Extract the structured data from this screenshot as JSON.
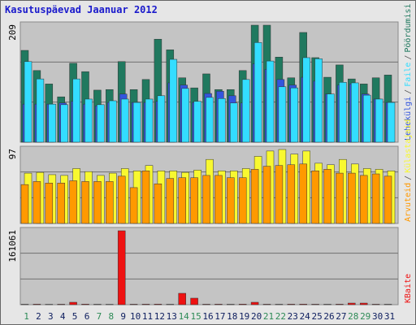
{
  "chart_data": [
    {
      "type": "bar",
      "title": "Kasutuspäevad Jaanuar 2012",
      "categories": [
        "1",
        "2",
        "3",
        "4",
        "5",
        "6",
        "7",
        "8",
        "9",
        "10",
        "11",
        "12",
        "13",
        "14",
        "15",
        "16",
        "17",
        "18",
        "19",
        "20",
        "21",
        "22",
        "23",
        "24",
        "25",
        "26",
        "27",
        "28",
        "29",
        "30",
        "31"
      ],
      "category_colors": [
        "#2e8b57",
        "#102060",
        "#102060",
        "#102060",
        "#102060",
        "#102060",
        "#2e8b57",
        "#2e8b57",
        "#102060",
        "#102060",
        "#102060",
        "#102060",
        "#102060",
        "#2e8b57",
        "#2e8b57",
        "#102060",
        "#102060",
        "#102060",
        "#102060",
        "#102060",
        "#2e8b57",
        "#2e8b57",
        "#102060",
        "#102060",
        "#102060",
        "#102060",
        "#102060",
        "#2e8b57",
        "#2e8b57",
        "#102060",
        "#102060"
      ],
      "legend_separator": "/",
      "series": [
        {
          "name": "Lehekülgi",
          "color": "#3355dd",
          "values": [
            68,
            68,
            68,
            70,
            73,
            68,
            65,
            71,
            86,
            71,
            71,
            73,
            106,
            102,
            71,
            87,
            91,
            83,
            70,
            140,
            130,
            112,
            102,
            116,
            109,
            86,
            102,
            104,
            86,
            77,
            71
          ]
        },
        {
          "name": "Faile",
          "color": "#33ddff",
          "values": [
            144,
            113,
            68,
            67,
            113,
            77,
            67,
            74,
            77,
            71,
            77,
            83,
            148,
            96,
            73,
            80,
            78,
            70,
            112,
            178,
            145,
            99,
            97,
            151,
            149,
            86,
            107,
            106,
            84,
            77,
            71
          ]
        },
        {
          "name": "Pöördumisi",
          "color": "#20795f",
          "values": [
            164,
            128,
            104,
            81,
            141,
            126,
            93,
            94,
            144,
            94,
            112,
            184,
            165,
            115,
            97,
            122,
            94,
            94,
            128,
            209,
            209,
            152,
            115,
            196,
            151,
            116,
            138,
            113,
            104,
            115,
            120
          ]
        }
      ],
      "ylim": [
        0,
        209
      ],
      "yticks": [
        209
      ]
    },
    {
      "type": "bar",
      "series": [
        {
          "name": "Arvuteid",
          "color": "#ff9900",
          "values": [
            51,
            55,
            53,
            53,
            56,
            55,
            55,
            55,
            62,
            47,
            69,
            52,
            59,
            60,
            60,
            63,
            63,
            60,
            60,
            71,
            75,
            76,
            77,
            78,
            69,
            71,
            66,
            66,
            63,
            65,
            62
          ]
        },
        {
          "name": "Külastajaid",
          "color": "#f8f830",
          "values": [
            66,
            67,
            64,
            63,
            72,
            68,
            63,
            66,
            72,
            69,
            76,
            69,
            69,
            67,
            70,
            84,
            69,
            69,
            72,
            88,
            95,
            97,
            91,
            95,
            79,
            77,
            84,
            78,
            72,
            71,
            69
          ]
        }
      ],
      "ylim": [
        0,
        97
      ],
      "yticks": [
        97
      ]
    },
    {
      "type": "bar",
      "series": [
        {
          "name": "KBaite",
          "color": "#ee1111",
          "values": [
            900,
            1100,
            800,
            1000,
            5300,
            1200,
            900,
            800,
            161061,
            1000,
            1100,
            1200,
            900,
            24800,
            14200,
            1000,
            1100,
            900,
            1200,
            5300,
            1000,
            900,
            1100,
            1200,
            1000,
            900,
            1100,
            3500,
            3500,
            1000,
            900
          ]
        }
      ],
      "ylim": [
        0,
        161061
      ],
      "yticks": [
        161061
      ]
    }
  ]
}
